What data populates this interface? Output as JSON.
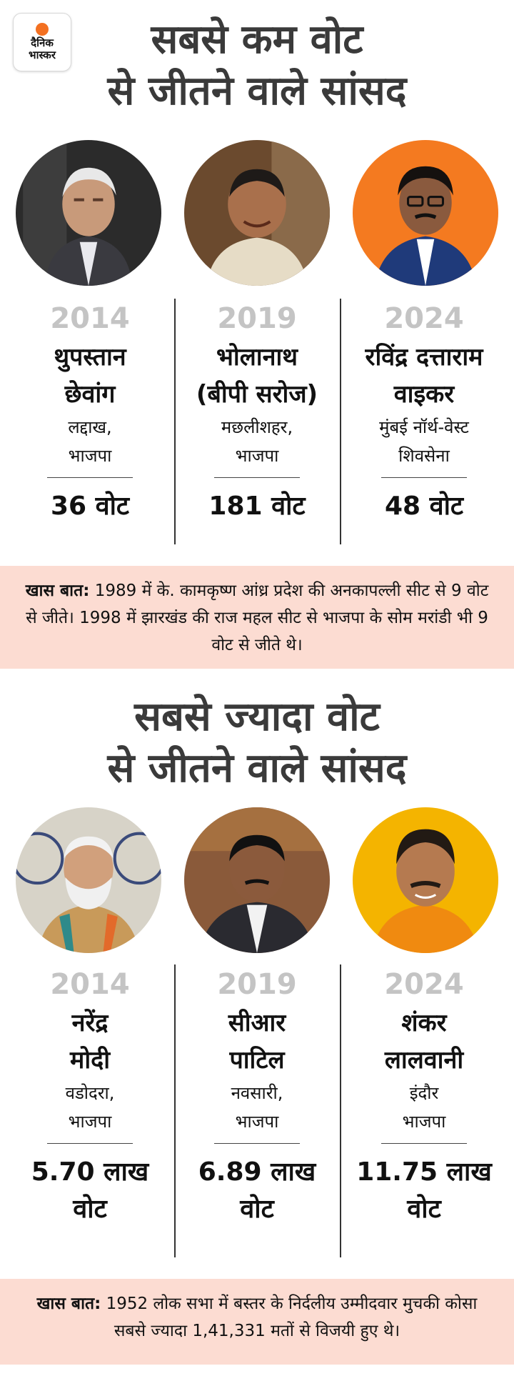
{
  "logo": {
    "line1": "दैनिक",
    "line2": "भास्कर"
  },
  "section1": {
    "title_line1": "सबसे कम वोट",
    "title_line2": "से जीतने वाले सांसद",
    "mps": [
      {
        "year": "2014",
        "name_line1": "थुपस्तान",
        "name_line2": "छेवांग",
        "place_line1": "लद्दाख,",
        "place_line2": "भाजपा",
        "votes_line1": "36 वोट",
        "votes_line2": "",
        "photo_bg": "#2b2b2b"
      },
      {
        "year": "2019",
        "name_line1": "भोलानाथ",
        "name_line2": "(बीपी सरोज)",
        "place_line1": "मछलीशहर,",
        "place_line2": "भाजपा",
        "votes_line1": "181 वोट",
        "votes_line2": "",
        "photo_bg": "#6b4a2e"
      },
      {
        "year": "2024",
        "name_line1": "रविंद्र दत्ताराम",
        "name_line2": "वाइकर",
        "place_line1": "मुंबई नॉर्थ-वेस्ट",
        "place_line2": "शिवसेना",
        "votes_line1": "48 वोट",
        "votes_line2": "",
        "photo_bg": "#f47a20"
      }
    ],
    "note_label": "खास बात:",
    "note_text": " 1989 में के. कामकृष्ण आंध्र प्रदेश की अनकापल्ली सीट से 9 वोट से जीते। 1998 में झारखंड की राज महल सीट से भाजपा के सोम मरांडी भी 9 वोट से जीते थे।"
  },
  "section2": {
    "title_line1": "सबसे ज्यादा वोट",
    "title_line2": "से जीतने वाले सांसद",
    "mps": [
      {
        "year": "2014",
        "name_line1": "नरेंद्र",
        "name_line2": "मोदी",
        "place_line1": "वडोदरा,",
        "place_line2": "भाजपा",
        "votes_line1": "5.70 लाख",
        "votes_line2": "वोट",
        "photo_bg": "#d7d3c8"
      },
      {
        "year": "2019",
        "name_line1": "सीआर",
        "name_line2": "पाटिल",
        "place_line1": "नवसारी,",
        "place_line2": "भाजपा",
        "votes_line1": "6.89 लाख",
        "votes_line2": "वोट",
        "photo_bg": "#8a5a3a"
      },
      {
        "year": "2024",
        "name_line1": "शंकर",
        "name_line2": "लालवानी",
        "place_line1": "इंदौर",
        "place_line2": "भाजपा",
        "votes_line1": "11.75 लाख",
        "votes_line2": "वोट",
        "photo_bg": "#f4b400"
      }
    ],
    "note_label": "खास बात:",
    "note_text": " 1952 लोक सभा में बस्तर के निर्दलीय उम्मीदवार मुचकी कोसा सबसे ज्यादा 1,41,331 मतों से विजयी हुए थे।"
  }
}
